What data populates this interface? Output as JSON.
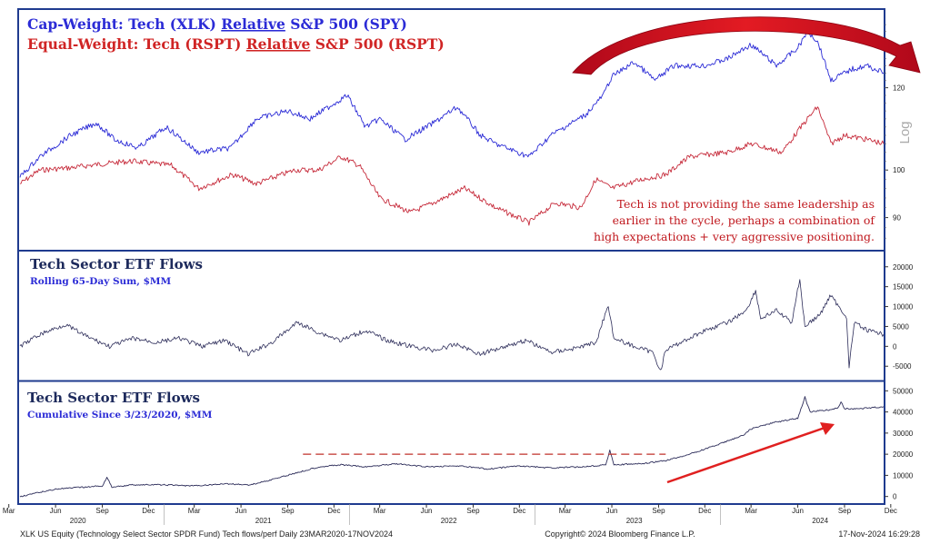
{
  "chart_data": [
    {
      "type": "line",
      "panel": "top",
      "title_lines": [
        {
          "parts": [
            "Cap-Weight: Tech (XLK) ",
            "Relative",
            " S&P 500 (SPY)"
          ],
          "color": "#2b2bd6"
        },
        {
          "parts": [
            "Equal-Weight: Tech (RSPT) ",
            "Relative",
            " S&P 500 (RSPT)"
          ],
          "color": "#d02525"
        }
      ],
      "y_scale": "log",
      "y_axis_label": "Log",
      "y_ticks": [
        90,
        100,
        120
      ],
      "ylim": [
        85,
        140
      ],
      "x_range": [
        "2020-03-23",
        "2024-11-17"
      ],
      "annotation": [
        "Tech is not providing the same leadership as",
        "earlier in the cycle, perhaps a combination of",
        "high expectations + very aggressive positioning."
      ],
      "series": [
        {
          "name": "Cap-Weight: Tech (XLK) Relative S&P 500 (SPY)",
          "color": "#2b2bd6",
          "x": [
            "2020-03-23",
            "2020-05-01",
            "2020-07-01",
            "2020-08-20",
            "2020-09-25",
            "2020-11-10",
            "2021-01-05",
            "2021-03-08",
            "2021-05-12",
            "2021-07-01",
            "2021-09-01",
            "2021-10-15",
            "2021-12-27",
            "2022-02-01",
            "2022-03-01",
            "2022-04-20",
            "2022-06-15",
            "2022-08-01",
            "2022-09-15",
            "2022-10-15",
            "2022-12-20",
            "2023-02-01",
            "2023-04-10",
            "2023-05-15",
            "2023-06-01",
            "2023-07-15",
            "2023-08-25",
            "2023-10-01",
            "2023-12-01",
            "2024-01-15",
            "2024-03-01",
            "2024-04-20",
            "2024-06-01",
            "2024-06-20",
            "2024-07-10",
            "2024-08-05",
            "2024-09-15",
            "2024-10-15",
            "2024-11-17"
          ],
          "values": [
            98.5,
            103,
            108,
            111,
            107,
            105,
            110,
            104,
            105,
            112,
            114,
            112,
            118,
            110,
            112,
            107,
            111,
            115,
            108,
            106,
            103,
            108,
            113,
            118,
            123,
            127,
            122,
            126,
            126,
            128,
            132,
            126,
            131,
            136,
            133,
            122,
            125,
            126,
            124
          ]
        },
        {
          "name": "Equal-Weight: Tech (RSPT) Relative S&P 500 (RSPT)",
          "color": "#c62a3a",
          "x": [
            "2020-03-23",
            "2020-05-01",
            "2020-07-01",
            "2020-09-10",
            "2020-11-01",
            "2021-01-15",
            "2021-03-10",
            "2021-05-15",
            "2021-07-01",
            "2021-09-15",
            "2021-11-01",
            "2021-12-15",
            "2022-01-20",
            "2022-03-01",
            "2022-04-30",
            "2022-06-15",
            "2022-08-15",
            "2022-10-15",
            "2022-12-20",
            "2023-02-10",
            "2023-04-01",
            "2023-05-01",
            "2023-06-01",
            "2023-08-01",
            "2023-09-15",
            "2023-11-01",
            "2024-01-15",
            "2024-03-01",
            "2024-05-01",
            "2024-06-20",
            "2024-07-10",
            "2024-08-05",
            "2024-09-01",
            "2024-10-15",
            "2024-11-17"
          ],
          "values": [
            97,
            100,
            100.5,
            101.5,
            102,
            101,
            96,
            99,
            97,
            100,
            100,
            103,
            101,
            94,
            91,
            93,
            96,
            92,
            89,
            93,
            92,
            98,
            96,
            98,
            99,
            103,
            104,
            106,
            104,
            112,
            115,
            106,
            108,
            107,
            106
          ]
        }
      ]
    },
    {
      "type": "line",
      "panel": "middle",
      "title": "Tech Sector ETF Flows",
      "subtitle": "Rolling 65-Day Sum, $MM",
      "y_ticks": [
        -5000,
        0,
        5000,
        10000,
        15000,
        20000
      ],
      "y_tick_labels": [
        "-5000",
        "0",
        "5000",
        "10000",
        "15000",
        "20000"
      ],
      "ylim": [
        -7000,
        22000
      ],
      "x_range": [
        "2020-03-23",
        "2024-11-17"
      ],
      "series": [
        {
          "name": "Rolling 65-Day Sum",
          "color": "#2d2d5a",
          "x": [
            "2020-03-23",
            "2020-05-01",
            "2020-06-20",
            "2020-08-01",
            "2020-09-15",
            "2020-11-01",
            "2020-12-15",
            "2021-02-01",
            "2021-03-15",
            "2021-05-01",
            "2021-06-15",
            "2021-08-01",
            "2021-09-20",
            "2021-11-01",
            "2021-12-15",
            "2022-02-01",
            "2022-03-15",
            "2022-05-01",
            "2022-06-15",
            "2022-08-01",
            "2022-09-15",
            "2022-11-01",
            "2022-12-15",
            "2023-02-01",
            "2023-03-20",
            "2023-05-01",
            "2023-05-25",
            "2023-06-05",
            "2023-07-15",
            "2023-08-20",
            "2023-09-05",
            "2023-09-15",
            "2023-10-15",
            "2023-12-01",
            "2024-01-15",
            "2024-02-20",
            "2024-03-10",
            "2024-03-20",
            "2024-04-20",
            "2024-05-20",
            "2024-06-05",
            "2024-06-15",
            "2024-07-15",
            "2024-08-05",
            "2024-08-20",
            "2024-09-05",
            "2024-09-10",
            "2024-09-20",
            "2024-10-15",
            "2024-11-17"
          ],
          "values": [
            0,
            3000,
            5500,
            2500,
            0,
            2000,
            1000,
            2000,
            0,
            1500,
            -2000,
            1000,
            6000,
            3500,
            1500,
            4000,
            1500,
            0,
            -1000,
            500,
            -2000,
            0,
            1500,
            -1500,
            -500,
            1000,
            10500,
            2000,
            0,
            -1500,
            -6000,
            -1000,
            1000,
            4000,
            6000,
            9000,
            14000,
            7000,
            9000,
            6000,
            17000,
            5000,
            8000,
            13000,
            10000,
            7500,
            -5500,
            6000,
            4000,
            3000
          ]
        }
      ]
    },
    {
      "type": "line",
      "panel": "bottom",
      "title": "Tech Sector ETF Flows",
      "subtitle": "Cumulative Since 3/23/2020, $MM",
      "y_ticks": [
        0,
        10000,
        20000,
        30000,
        40000,
        50000
      ],
      "y_tick_labels": [
        "0",
        "10000",
        "20000",
        "30000",
        "40000",
        "50000"
      ],
      "ylim": [
        -1000,
        51000
      ],
      "x_range": [
        "2020-03-23",
        "2024-11-17"
      ],
      "x_tick_labels": [
        "Mar",
        "Jun",
        "Sep",
        "Dec",
        "Mar",
        "Jun",
        "Sep",
        "Dec",
        "Mar",
        "Jun",
        "Sep",
        "Dec",
        "Mar",
        "Jun",
        "Sep",
        "Dec",
        "Mar",
        "Jun",
        "Sep",
        "Dec"
      ],
      "year_labels": [
        "2020",
        "2021",
        "2022",
        "2023",
        "2024"
      ],
      "reference_level": 20000,
      "series": [
        {
          "name": "Cumulative Since 3/23/2020",
          "color": "#2d2d5a",
          "x": [
            "2020-03-23",
            "2020-06-01",
            "2020-08-01",
            "2020-09-01",
            "2020-09-10",
            "2020-09-20",
            "2020-11-01",
            "2021-01-01",
            "2021-03-01",
            "2021-05-01",
            "2021-06-20",
            "2021-08-01",
            "2021-09-15",
            "2021-11-01",
            "2021-12-15",
            "2022-02-01",
            "2022-04-01",
            "2022-06-01",
            "2022-08-01",
            "2022-10-01",
            "2022-12-01",
            "2023-02-01",
            "2023-04-01",
            "2023-05-20",
            "2023-05-28",
            "2023-06-05",
            "2023-08-01",
            "2023-09-15",
            "2023-11-01",
            "2024-01-01",
            "2024-02-15",
            "2024-03-01",
            "2024-04-15",
            "2024-06-01",
            "2024-06-15",
            "2024-06-25",
            "2024-08-01",
            "2024-08-20",
            "2024-08-25",
            "2024-09-01",
            "2024-10-01",
            "2024-11-17"
          ],
          "values": [
            0,
            3500,
            4500,
            5000,
            9000,
            4500,
            5500,
            5500,
            5000,
            6000,
            5500,
            8000,
            11000,
            14000,
            15000,
            14000,
            15500,
            14000,
            14500,
            13000,
            14500,
            13500,
            14000,
            15000,
            22000,
            15000,
            15500,
            17000,
            20000,
            25000,
            29000,
            32000,
            35000,
            37000,
            47000,
            40000,
            41000,
            42000,
            45000,
            41500,
            41500,
            42500
          ]
        }
      ]
    }
  ],
  "footer": {
    "left": "XLK US Equity (Technology Select Sector SPDR Fund) Tech flows/perf  Daily 23MAR2020-17NOV2024",
    "center": "Copyright© 2024 Bloomberg Finance L.P.",
    "right": "17-Nov-2024 16:29:28"
  },
  "colors": {
    "frame": "#1f3b8f",
    "arrow": "#d11a1a",
    "trend": "#e02020",
    "dashed": "#c0302a"
  }
}
